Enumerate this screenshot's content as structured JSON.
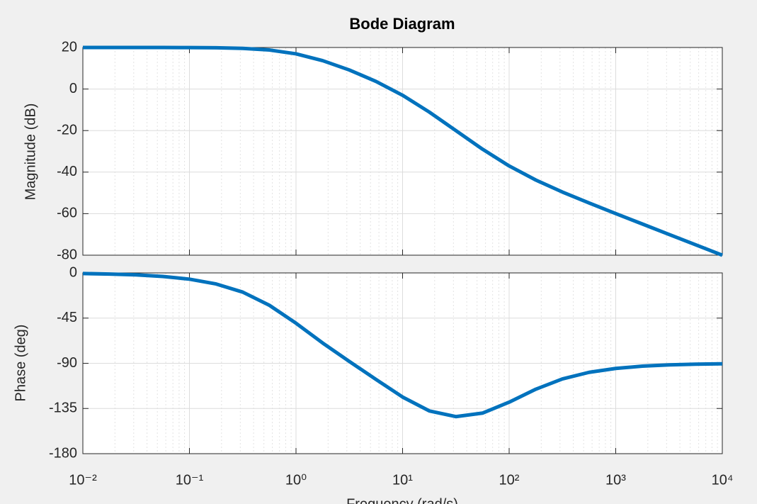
{
  "chart_data": [
    {
      "type": "line",
      "title": "Bode Diagram",
      "ylabel": "Magnitude (dB)",
      "xscale": "log",
      "grid": true,
      "minor_grid": true,
      "x": [
        0.01,
        0.0178,
        0.0316,
        0.0562,
        0.1,
        0.178,
        0.316,
        0.562,
        1,
        1.78,
        3.16,
        5.62,
        10,
        17.8,
        31.6,
        56.2,
        100,
        178,
        316,
        562,
        1000,
        1780,
        3160,
        5620,
        10000
      ],
      "series": [
        {
          "color": "#0072BD",
          "values": [
            20.0,
            20.0,
            20.0,
            19.99,
            19.96,
            19.86,
            19.58,
            18.8,
            16.95,
            13.67,
            9.18,
            3.69,
            -3.01,
            -11.08,
            -20.0,
            -28.94,
            -37.03,
            -43.82,
            -49.59,
            -54.87,
            -59.96,
            -64.98,
            -70.0,
            -75.0,
            -80.0
          ]
        }
      ],
      "ylim": [
        -80,
        20
      ],
      "yticks": [
        -80,
        -60,
        -40,
        -20,
        0,
        20
      ]
    },
    {
      "type": "line",
      "ylabel": "Phase (deg)",
      "xlabel": "Frequency  (rad/s)",
      "xscale": "log",
      "grid": true,
      "minor_grid": true,
      "x": [
        0.01,
        0.0178,
        0.0316,
        0.0562,
        0.1,
        0.178,
        0.316,
        0.562,
        1,
        1.78,
        3.16,
        5.62,
        10,
        17.8,
        31.6,
        56.2,
        100,
        178,
        316,
        562,
        1000,
        1780,
        3160,
        5620,
        10000
      ],
      "series": [
        {
          "color": "#0072BD",
          "values": [
            -0.62,
            -1.11,
            -1.97,
            -3.51,
            -6.22,
            -11.0,
            -19.1,
            -32.2,
            -50.1,
            -69.8,
            -88.1,
            -106.0,
            -123.6,
            -137.4,
            -143.1,
            -139.6,
            -128.7,
            -115.8,
            -105.6,
            -99.0,
            -95.1,
            -92.85,
            -91.6,
            -90.9,
            -90.5
          ]
        }
      ],
      "ylim": [
        -180,
        0
      ],
      "yticks": [
        -180,
        -135,
        -90,
        -45,
        0
      ],
      "xlim": [
        0.01,
        10000
      ],
      "xticks": [
        {
          "value": 0.01,
          "label": "10⁻²"
        },
        {
          "value": 0.1,
          "label": "10⁻¹"
        },
        {
          "value": 1,
          "label": "10⁰"
        },
        {
          "value": 10,
          "label": "10¹"
        },
        {
          "value": 100,
          "label": "10²"
        },
        {
          "value": 1000,
          "label": "10³"
        },
        {
          "value": 10000,
          "label": "10⁴"
        }
      ]
    }
  ]
}
